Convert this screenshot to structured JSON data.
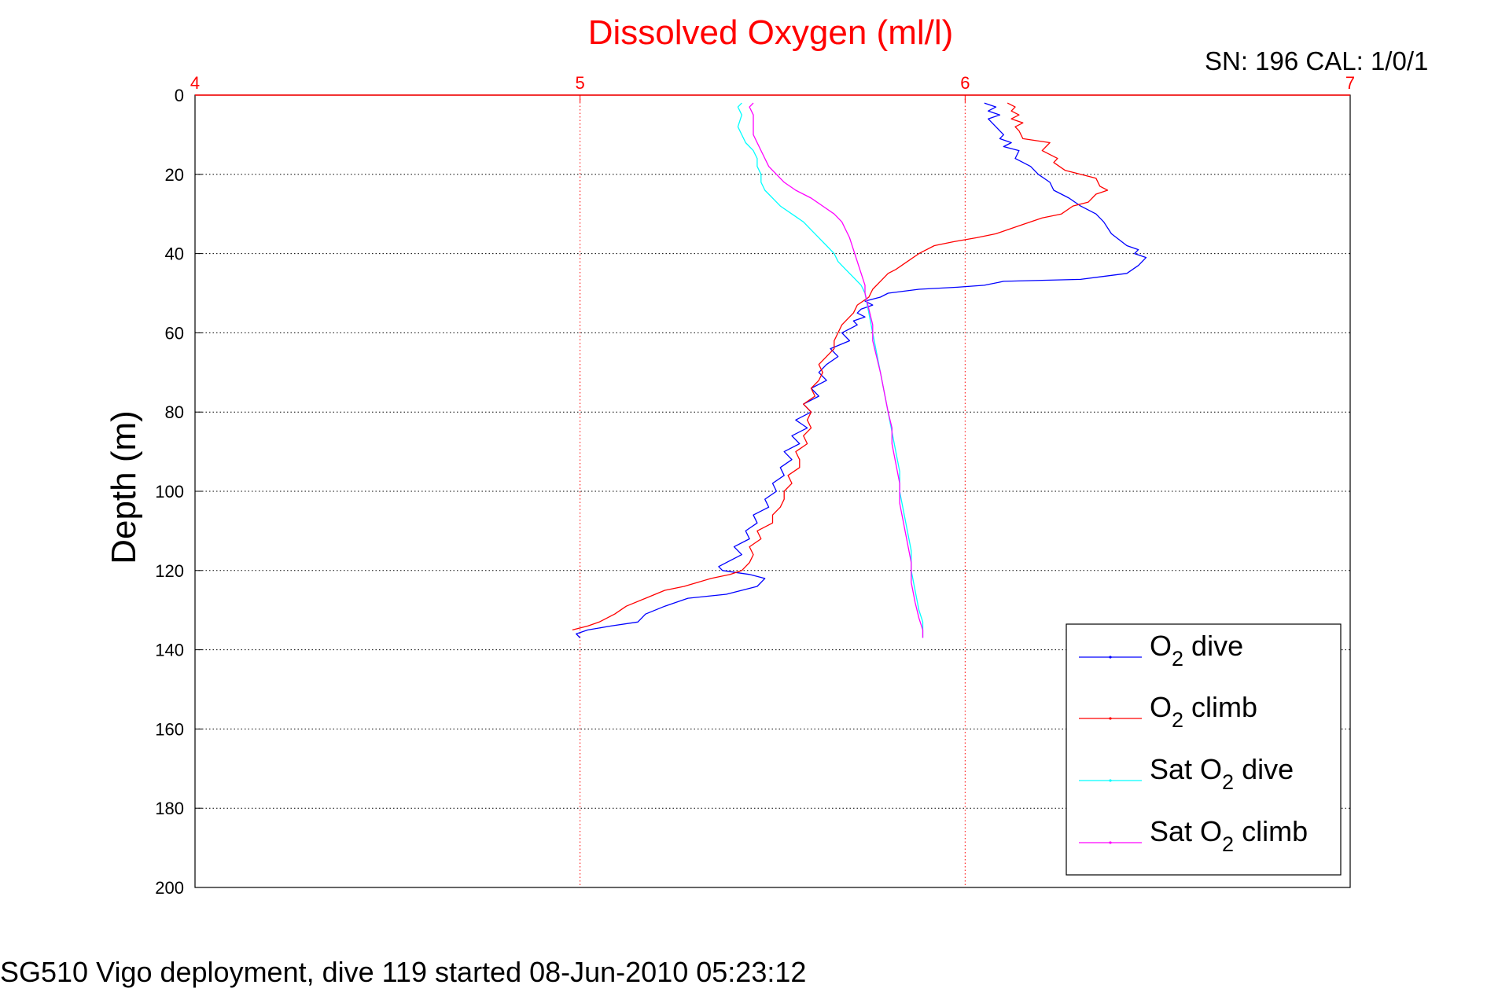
{
  "chart_data": {
    "type": "line",
    "title": "Dissolved Oxygen (ml/l)",
    "ylabel": "Depth (m)",
    "xlabel": "",
    "xlim": [
      4,
      7
    ],
    "ylim": [
      0,
      200
    ],
    "y_reversed": true,
    "x_axis_position": "top",
    "x_ticks": [
      "4",
      "5",
      "6",
      "7"
    ],
    "y_ticks": [
      "0",
      "20",
      "40",
      "60",
      "80",
      "100",
      "120",
      "140",
      "160",
      "180",
      "200"
    ],
    "grid": true,
    "legend_position": "bottom-right",
    "serial_label": "SN: 196  CAL: 1/0/1",
    "footer": "SG510 Vigo deployment, dive 119 started 08-Jun-2010 05:23:12",
    "colors": {
      "title": "#ff0000",
      "x_ticks": "#ff0000",
      "grid_x": "#ff0000",
      "grid_y": "#000000"
    },
    "series": [
      {
        "legend": {
          "pre": "O",
          "sub": "2",
          "post": " dive"
        },
        "color": "#0000ff",
        "points": [
          [
            6.05,
            2
          ],
          [
            6.08,
            3
          ],
          [
            6.06,
            4
          ],
          [
            6.09,
            5
          ],
          [
            6.06,
            6
          ],
          [
            6.08,
            8
          ],
          [
            6.1,
            10
          ],
          [
            6.09,
            11
          ],
          [
            6.12,
            12
          ],
          [
            6.1,
            13
          ],
          [
            6.14,
            14
          ],
          [
            6.13,
            16
          ],
          [
            6.17,
            18
          ],
          [
            6.19,
            20
          ],
          [
            6.22,
            22
          ],
          [
            6.23,
            24
          ],
          [
            6.27,
            26
          ],
          [
            6.3,
            28
          ],
          [
            6.34,
            30
          ],
          [
            6.36,
            32
          ],
          [
            6.38,
            35
          ],
          [
            6.42,
            38
          ],
          [
            6.45,
            39
          ],
          [
            6.44,
            40
          ],
          [
            6.47,
            41
          ],
          [
            6.45,
            43
          ],
          [
            6.42,
            45
          ],
          [
            6.3,
            46.5
          ],
          [
            6.1,
            47
          ],
          [
            6.05,
            48
          ],
          [
            5.98,
            48.5
          ],
          [
            5.88,
            49
          ],
          [
            5.8,
            50
          ],
          [
            5.78,
            51
          ],
          [
            5.74,
            52
          ],
          [
            5.76,
            53
          ],
          [
            5.73,
            54
          ],
          [
            5.72,
            55
          ],
          [
            5.74,
            56
          ],
          [
            5.71,
            57
          ],
          [
            5.72,
            58
          ],
          [
            5.7,
            59
          ],
          [
            5.68,
            60
          ],
          [
            5.7,
            62
          ],
          [
            5.65,
            64
          ],
          [
            5.67,
            66
          ],
          [
            5.64,
            68
          ],
          [
            5.62,
            70
          ],
          [
            5.64,
            72
          ],
          [
            5.6,
            74
          ],
          [
            5.62,
            76
          ],
          [
            5.58,
            78
          ],
          [
            5.6,
            80
          ],
          [
            5.56,
            82
          ],
          [
            5.59,
            84
          ],
          [
            5.55,
            86
          ],
          [
            5.57,
            88
          ],
          [
            5.53,
            90
          ],
          [
            5.55,
            92
          ],
          [
            5.52,
            94
          ],
          [
            5.53,
            96
          ],
          [
            5.5,
            98
          ],
          [
            5.51,
            100
          ],
          [
            5.48,
            102
          ],
          [
            5.49,
            104
          ],
          [
            5.45,
            106
          ],
          [
            5.46,
            108
          ],
          [
            5.43,
            110
          ],
          [
            5.44,
            112
          ],
          [
            5.4,
            114
          ],
          [
            5.42,
            116
          ],
          [
            5.38,
            118
          ],
          [
            5.36,
            119
          ],
          [
            5.37,
            120
          ],
          [
            5.44,
            121
          ],
          [
            5.48,
            122
          ],
          [
            5.46,
            124
          ],
          [
            5.38,
            126
          ],
          [
            5.28,
            127
          ],
          [
            5.22,
            129
          ],
          [
            5.17,
            131
          ],
          [
            5.15,
            133
          ],
          [
            5.08,
            134
          ],
          [
            5.02,
            135
          ],
          [
            4.99,
            136
          ],
          [
            5.0,
            137
          ]
        ]
      },
      {
        "legend": {
          "pre": "O",
          "sub": "2",
          "post": " climb"
        },
        "color": "#ff0000",
        "points": [
          [
            4.98,
            135
          ],
          [
            5.02,
            134
          ],
          [
            5.05,
            133
          ],
          [
            5.09,
            131
          ],
          [
            5.12,
            129
          ],
          [
            5.17,
            127
          ],
          [
            5.22,
            125
          ],
          [
            5.27,
            124
          ],
          [
            5.34,
            122
          ],
          [
            5.39,
            121
          ],
          [
            5.42,
            120
          ],
          [
            5.44,
            118
          ],
          [
            5.45,
            116
          ],
          [
            5.44,
            114
          ],
          [
            5.47,
            112
          ],
          [
            5.46,
            110
          ],
          [
            5.5,
            108
          ],
          [
            5.5,
            106
          ],
          [
            5.52,
            104
          ],
          [
            5.53,
            102
          ],
          [
            5.53,
            100
          ],
          [
            5.55,
            98
          ],
          [
            5.54,
            96
          ],
          [
            5.57,
            94
          ],
          [
            5.57,
            92
          ],
          [
            5.56,
            90
          ],
          [
            5.59,
            88
          ],
          [
            5.58,
            86
          ],
          [
            5.6,
            84
          ],
          [
            5.59,
            82
          ],
          [
            5.6,
            80
          ],
          [
            5.58,
            78
          ],
          [
            5.61,
            76
          ],
          [
            5.6,
            74
          ],
          [
            5.62,
            72
          ],
          [
            5.63,
            70
          ],
          [
            5.62,
            68
          ],
          [
            5.64,
            66
          ],
          [
            5.66,
            64
          ],
          [
            5.66,
            62
          ],
          [
            5.67,
            60
          ],
          [
            5.68,
            58
          ],
          [
            5.7,
            56
          ],
          [
            5.71,
            55
          ],
          [
            5.72,
            53
          ],
          [
            5.75,
            51
          ],
          [
            5.76,
            49
          ],
          [
            5.78,
            47
          ],
          [
            5.8,
            45
          ],
          [
            5.82,
            44
          ],
          [
            5.85,
            42
          ],
          [
            5.88,
            40
          ],
          [
            5.92,
            38
          ],
          [
            5.97,
            37
          ],
          [
            6.03,
            36
          ],
          [
            6.08,
            35
          ],
          [
            6.14,
            33
          ],
          [
            6.2,
            31
          ],
          [
            6.25,
            30
          ],
          [
            6.28,
            28
          ],
          [
            6.32,
            27
          ],
          [
            6.34,
            25
          ],
          [
            6.37,
            24
          ],
          [
            6.35,
            23
          ],
          [
            6.34,
            21
          ],
          [
            6.3,
            20
          ],
          [
            6.26,
            19
          ],
          [
            6.23,
            17
          ],
          [
            6.24,
            16
          ],
          [
            6.2,
            14
          ],
          [
            6.22,
            12
          ],
          [
            6.15,
            11
          ],
          [
            6.14,
            9
          ],
          [
            6.13,
            8
          ],
          [
            6.15,
            7
          ],
          [
            6.12,
            6
          ],
          [
            6.14,
            5
          ],
          [
            6.12,
            4
          ],
          [
            6.13,
            3
          ],
          [
            6.11,
            2
          ]
        ]
      },
      {
        "legend": {
          "pre": "Sat O",
          "sub": "2",
          "post": " dive"
        },
        "color": "#00ffff",
        "points": [
          [
            5.42,
            2
          ],
          [
            5.41,
            3
          ],
          [
            5.42,
            5
          ],
          [
            5.41,
            8
          ],
          [
            5.42,
            10
          ],
          [
            5.43,
            12
          ],
          [
            5.45,
            14
          ],
          [
            5.46,
            16
          ],
          [
            5.46,
            18
          ],
          [
            5.47,
            20
          ],
          [
            5.47,
            22
          ],
          [
            5.48,
            24
          ],
          [
            5.5,
            26
          ],
          [
            5.52,
            28
          ],
          [
            5.55,
            30
          ],
          [
            5.58,
            32
          ],
          [
            5.6,
            34
          ],
          [
            5.62,
            36
          ],
          [
            5.64,
            38
          ],
          [
            5.66,
            40
          ],
          [
            5.67,
            42
          ],
          [
            5.69,
            44
          ],
          [
            5.71,
            46
          ],
          [
            5.73,
            48
          ],
          [
            5.74,
            50
          ],
          [
            5.75,
            55
          ],
          [
            5.76,
            60
          ],
          [
            5.77,
            65
          ],
          [
            5.78,
            70
          ],
          [
            5.79,
            75
          ],
          [
            5.8,
            80
          ],
          [
            5.81,
            85
          ],
          [
            5.82,
            90
          ],
          [
            5.83,
            95
          ],
          [
            5.83,
            100
          ],
          [
            5.84,
            105
          ],
          [
            5.85,
            110
          ],
          [
            5.86,
            115
          ],
          [
            5.86,
            120
          ],
          [
            5.87,
            125
          ],
          [
            5.88,
            130
          ],
          [
            5.89,
            133
          ],
          [
            5.89,
            137
          ]
        ]
      },
      {
        "legend": {
          "pre": "Sat O",
          "sub": "2",
          "post": " climb"
        },
        "color": "#ff00ff",
        "points": [
          [
            5.89,
            137
          ],
          [
            5.89,
            135
          ],
          [
            5.88,
            132
          ],
          [
            5.87,
            128
          ],
          [
            5.86,
            123
          ],
          [
            5.86,
            118
          ],
          [
            5.85,
            113
          ],
          [
            5.84,
            108
          ],
          [
            5.83,
            103
          ],
          [
            5.83,
            98
          ],
          [
            5.82,
            93
          ],
          [
            5.81,
            88
          ],
          [
            5.81,
            84
          ],
          [
            5.8,
            80
          ],
          [
            5.79,
            75
          ],
          [
            5.78,
            70
          ],
          [
            5.77,
            66
          ],
          [
            5.76,
            62
          ],
          [
            5.76,
            58
          ],
          [
            5.75,
            54
          ],
          [
            5.74,
            50
          ],
          [
            5.74,
            48
          ],
          [
            5.73,
            45
          ],
          [
            5.72,
            42
          ],
          [
            5.71,
            39
          ],
          [
            5.7,
            36
          ],
          [
            5.69,
            34
          ],
          [
            5.68,
            32
          ],
          [
            5.66,
            30
          ],
          [
            5.63,
            28
          ],
          [
            5.6,
            26
          ],
          [
            5.56,
            24
          ],
          [
            5.53,
            22
          ],
          [
            5.51,
            20
          ],
          [
            5.49,
            18
          ],
          [
            5.48,
            16
          ],
          [
            5.47,
            14
          ],
          [
            5.46,
            12
          ],
          [
            5.45,
            10
          ],
          [
            5.45,
            8
          ],
          [
            5.45,
            5
          ],
          [
            5.44,
            3
          ],
          [
            5.45,
            2
          ]
        ]
      }
    ]
  }
}
